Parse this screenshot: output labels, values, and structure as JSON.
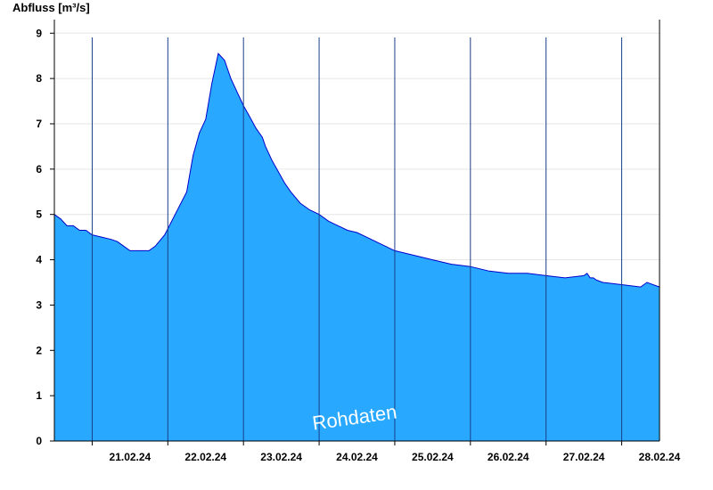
{
  "chart_data": {
    "type": "area",
    "ylabel": "Abfluss [m³/s]",
    "ylim": [
      0,
      9.3
    ],
    "yticks": [
      0,
      1,
      2,
      3,
      4,
      5,
      6,
      7,
      8,
      9
    ],
    "xlim": [
      "20.02.24 12:00",
      "28.02.24 12:00"
    ],
    "xtick_labels": [
      "21.02.24",
      "22.02.24",
      "23.02.24",
      "24.02.24",
      "25.02.24",
      "26.02.24",
      "27.02.24",
      "28.02.24"
    ],
    "grid": true,
    "legend": "none",
    "fill_color": "#29a8ff",
    "line_color": "#0000cc",
    "annotation": "Rohdaten",
    "series": [
      {
        "x": [
          "20.02.24 12:00",
          "20.02.24 14:00",
          "20.02.24 16:00",
          "20.02.24 18:00",
          "20.02.24 20:00",
          "20.02.24 22:00",
          "21.02.24 00:00",
          "21.02.24 03:00",
          "21.02.24 06:00",
          "21.02.24 08:00",
          "21.02.24 09:00",
          "21.02.24 10:00",
          "21.02.24 12:00",
          "21.02.24 15:00",
          "21.02.24 18:00",
          "21.02.24 20:00",
          "21.02.24 23:00",
          "22.02.24 06:00",
          "22.02.24 08:00",
          "22.02.24 10:00",
          "22.02.24 12:00",
          "22.02.24 14:00",
          "22.02.24 16:00",
          "22.02.24 18:00",
          "22.02.24 20:00",
          "22.02.24 22:00",
          "23.02.24 00:00",
          "23.02.24 02:00",
          "23.02.24 04:00",
          "23.02.24 06:00",
          "23.02.24 07:00",
          "23.02.24 09:00",
          "23.02.24 11:00",
          "23.02.24 13:00",
          "23.02.24 15:00",
          "23.02.24 18:00",
          "23.02.24 21:00",
          "24.02.24 00:00",
          "24.02.24 03:00",
          "24.02.24 06:00",
          "24.02.24 09:00",
          "24.02.24 12:00",
          "24.02.24 15:00",
          "24.02.24 18:00",
          "24.02.24 21:00",
          "25.02.24 00:00",
          "25.02.24 06:00",
          "25.02.24 12:00",
          "25.02.24 18:00",
          "26.02.24 00:00",
          "26.02.24 06:00",
          "26.02.24 12:00",
          "26.02.24 18:00",
          "27.02.24 00:00",
          "27.02.24 06:00",
          "27.02.24 12:00",
          "27.02.24 13:00",
          "27.02.24 14:00",
          "27.02.24 15:00",
          "27.02.24 16:00",
          "27.02.24 18:00",
          "28.02.24 00:00",
          "28.02.24 06:00",
          "28.02.24 08:00",
          "28.02.24 12:00"
        ],
        "y": [
          5.0,
          4.9,
          4.75,
          4.75,
          4.65,
          4.65,
          4.55,
          4.5,
          4.45,
          4.4,
          4.35,
          4.3,
          4.2,
          4.2,
          4.2,
          4.3,
          4.55,
          5.5,
          6.3,
          6.8,
          7.1,
          7.9,
          8.55,
          8.4,
          8.0,
          7.7,
          7.4,
          7.15,
          6.9,
          6.7,
          6.5,
          6.2,
          5.95,
          5.7,
          5.5,
          5.25,
          5.1,
          5.0,
          4.85,
          4.75,
          4.65,
          4.6,
          4.5,
          4.4,
          4.3,
          4.2,
          4.1,
          4.0,
          3.9,
          3.85,
          3.75,
          3.7,
          3.7,
          3.65,
          3.6,
          3.65,
          3.7,
          3.6,
          3.6,
          3.55,
          3.5,
          3.45,
          3.4,
          3.5,
          3.4
        ]
      }
    ]
  }
}
